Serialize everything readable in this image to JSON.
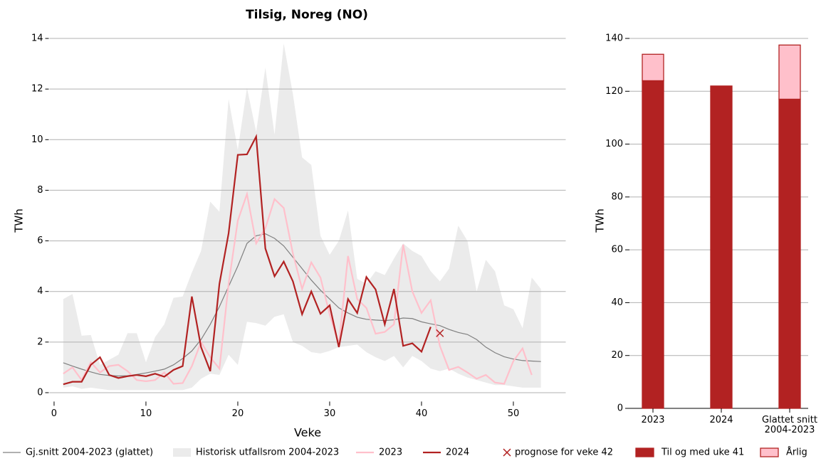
{
  "chart_data": [
    {
      "type": "line",
      "title": "Tilsig, Noreg (NO)",
      "x_label": "Veke",
      "y_label": "TWh",
      "x": [
        1,
        2,
        3,
        4,
        5,
        6,
        7,
        8,
        9,
        10,
        11,
        12,
        13,
        14,
        15,
        16,
        17,
        18,
        19,
        20,
        21,
        22,
        23,
        24,
        25,
        26,
        27,
        28,
        29,
        30,
        31,
        32,
        33,
        34,
        35,
        36,
        37,
        38,
        39,
        40,
        41,
        42,
        43,
        44,
        45,
        46,
        47,
        48,
        49,
        50,
        51,
        52,
        53
      ],
      "xlim": [
        -0.5,
        55.7
      ],
      "xticks": [
        0,
        10,
        20,
        30,
        40,
        50
      ],
      "ylim": [
        -0.35,
        14.35
      ],
      "yticks": [
        0,
        2,
        4,
        6,
        8,
        10,
        12,
        14
      ],
      "grid": true,
      "series": [
        {
          "name": "Gj.snitt 2004-2023 (glattet)",
          "type": "line",
          "color": "#808080",
          "values": [
            1.18,
            1.05,
            0.93,
            0.82,
            0.72,
            0.68,
            0.66,
            0.67,
            0.72,
            0.78,
            0.85,
            0.93,
            1.1,
            1.35,
            1.65,
            2.1,
            2.7,
            3.4,
            4.2,
            5.0,
            5.9,
            6.2,
            6.28,
            6.1,
            5.8,
            5.35,
            4.9,
            4.45,
            4.05,
            3.7,
            3.35,
            3.15,
            2.98,
            2.9,
            2.87,
            2.85,
            2.88,
            2.95,
            2.93,
            2.8,
            2.72,
            2.65,
            2.5,
            2.38,
            2.3,
            2.1,
            1.8,
            1.58,
            1.42,
            1.33,
            1.27,
            1.25,
            1.23
          ]
        },
        {
          "name": "Historisk utfallsrom 2004-2023",
          "type": "band",
          "color": "#ebebeb",
          "lower": [
            0.2,
            0.25,
            0.15,
            0.2,
            0.15,
            0.1,
            0.1,
            0.1,
            0.1,
            0.1,
            0.1,
            0.1,
            0.1,
            0.1,
            0.2,
            0.55,
            0.75,
            0.7,
            1.5,
            1.1,
            2.8,
            2.75,
            2.65,
            3.0,
            3.1,
            2.0,
            1.85,
            1.6,
            1.55,
            1.65,
            1.8,
            1.85,
            1.9,
            1.6,
            1.4,
            1.25,
            1.45,
            1.0,
            1.45,
            1.25,
            0.95,
            0.85,
            0.95,
            0.75,
            0.6,
            0.5,
            0.4,
            0.3,
            0.3,
            0.25,
            0.2,
            0.2,
            0.2
          ],
          "upper": [
            3.7,
            3.9,
            2.25,
            2.28,
            1.1,
            1.3,
            1.5,
            2.35,
            2.35,
            1.2,
            2.2,
            2.7,
            3.75,
            3.8,
            4.75,
            5.6,
            7.55,
            7.15,
            11.6,
            9.6,
            12.05,
            10.3,
            12.85,
            10.2,
            13.8,
            11.8,
            9.3,
            9.0,
            6.2,
            5.45,
            6.0,
            7.2,
            4.5,
            4.3,
            4.8,
            4.65,
            5.3,
            5.9,
            5.6,
            5.4,
            4.8,
            4.4,
            4.9,
            6.6,
            6.0,
            4.0,
            5.25,
            4.8,
            3.45,
            3.3,
            2.55,
            4.55,
            4.1
          ]
        },
        {
          "name": "2023",
          "type": "line",
          "color": "#ffc0cb",
          "values": [
            0.75,
            1.0,
            0.5,
            1.2,
            0.8,
            1.05,
            1.1,
            0.85,
            0.5,
            0.45,
            0.5,
            0.8,
            0.35,
            0.38,
            1.05,
            2.0,
            1.4,
            0.95,
            4.3,
            6.8,
            7.85,
            5.9,
            6.5,
            7.65,
            7.3,
            5.5,
            4.1,
            5.15,
            4.55,
            3.1,
            1.9,
            5.4,
            3.7,
            3.35,
            2.33,
            2.4,
            2.7,
            5.85,
            4.0,
            3.15,
            3.65,
            1.85,
            0.9,
            1.02,
            0.8,
            0.55,
            0.7,
            0.4,
            0.35,
            1.25,
            1.75,
            0.7,
            null
          ]
        },
        {
          "name": "2024",
          "type": "line",
          "color": "#b22222",
          "values": [
            0.33,
            0.43,
            0.43,
            1.1,
            1.4,
            0.7,
            0.58,
            0.65,
            0.7,
            0.65,
            0.75,
            0.63,
            0.9,
            1.05,
            3.8,
            1.8,
            0.85,
            4.3,
            6.3,
            9.4,
            9.42,
            10.12,
            5.7,
            4.6,
            5.18,
            4.4,
            3.1,
            4.0,
            3.12,
            3.45,
            1.8,
            3.7,
            3.15,
            4.57,
            4.08,
            2.7,
            4.1,
            1.85,
            1.95,
            1.62,
            2.6,
            null,
            null,
            null,
            null,
            null,
            null,
            null,
            null,
            null,
            null,
            null,
            null
          ]
        },
        {
          "name": "prognose for veke 42",
          "type": "marker",
          "color": "#b22222",
          "x": [
            42
          ],
          "values": [
            2.35
          ]
        }
      ]
    },
    {
      "type": "stacked_bar",
      "y_label": "TWh",
      "categories": [
        "2023",
        "2024",
        "Glattet snitt\n2004-2023"
      ],
      "ylim": [
        0,
        140
      ],
      "yticks": [
        0,
        20,
        40,
        60,
        80,
        100,
        120,
        140
      ],
      "grid": true,
      "series": [
        {
          "name": "Til og med uke 41",
          "color": "#b22222",
          "edge": "#b22222",
          "values": [
            124,
            122,
            117
          ]
        },
        {
          "name": "Årlig",
          "color": "#ffc0cb",
          "edge": "#b22222",
          "values": [
            10,
            null,
            20.5
          ]
        }
      ]
    }
  ]
}
